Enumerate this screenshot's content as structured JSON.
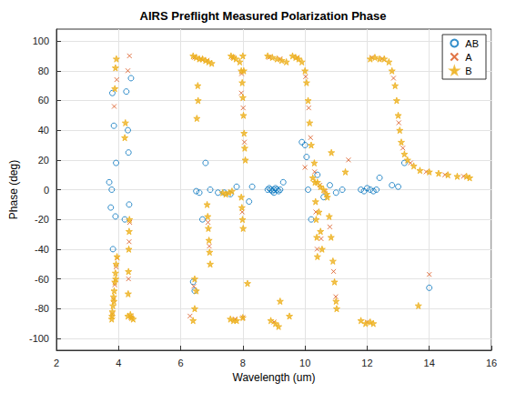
{
  "chart_data": {
    "type": "scatter",
    "title": "AIRS Preflight Measured Polarization Phase",
    "xlabel": "Wavelength (um)",
    "ylabel": "Phase (deg)",
    "xlim": [
      2,
      16
    ],
    "xticks": [
      2,
      4,
      6,
      8,
      10,
      12,
      14,
      16
    ],
    "ylim": [
      -108,
      108
    ],
    "yticks": [
      -100,
      -80,
      -60,
      -40,
      -20,
      0,
      20,
      40,
      60,
      80,
      100
    ],
    "grid": true,
    "legend": "northeast",
    "series": [
      {
        "name": "AB",
        "color": "#0072bd",
        "marker": "circle",
        "values": [
          [
            3.7,
            5
          ],
          [
            3.75,
            -12
          ],
          [
            3.8,
            65
          ],
          [
            3.82,
            -40
          ],
          [
            3.85,
            43
          ],
          [
            3.9,
            -18
          ],
          [
            3.92,
            18
          ],
          [
            3.78,
            0
          ],
          [
            4.3,
            40
          ],
          [
            4.32,
            25
          ],
          [
            4.34,
            -10
          ],
          [
            4.2,
            -20
          ],
          [
            4.4,
            75
          ],
          [
            4.25,
            66
          ],
          [
            6.4,
            -62
          ],
          [
            6.45,
            -68
          ],
          [
            6.5,
            -1
          ],
          [
            6.6,
            -2
          ],
          [
            6.7,
            -20
          ],
          [
            6.8,
            18
          ],
          [
            6.95,
            0
          ],
          [
            7.2,
            -2
          ],
          [
            7.4,
            -2
          ],
          [
            7.6,
            -3
          ],
          [
            7.8,
            2
          ],
          [
            8.2,
            -8
          ],
          [
            8.3,
            2
          ],
          [
            8.8,
            0
          ],
          [
            8.85,
            1
          ],
          [
            8.9,
            0
          ],
          [
            8.95,
            -1
          ],
          [
            9.0,
            0
          ],
          [
            9.05,
            1
          ],
          [
            9.1,
            0
          ],
          [
            9.15,
            -1
          ],
          [
            9.2,
            0
          ],
          [
            9.3,
            5
          ],
          [
            9.0,
            -2
          ],
          [
            9.9,
            32
          ],
          [
            10.0,
            30
          ],
          [
            10.05,
            22
          ],
          [
            10.1,
            0
          ],
          [
            10.2,
            -20
          ],
          [
            10.4,
            10
          ],
          [
            10.6,
            -5
          ],
          [
            10.8,
            3
          ],
          [
            11.0,
            -2
          ],
          [
            11.2,
            0
          ],
          [
            11.8,
            0
          ],
          [
            11.9,
            -1
          ],
          [
            12.0,
            1
          ],
          [
            12.1,
            0
          ],
          [
            12.2,
            -1
          ],
          [
            12.3,
            0
          ],
          [
            12.4,
            8
          ],
          [
            12.8,
            3
          ],
          [
            14.0,
            -66
          ],
          [
            13.0,
            2
          ],
          [
            13.2,
            18
          ]
        ]
      },
      {
        "name": "A",
        "color": "#d95319",
        "marker": "x",
        "values": [
          [
            3.8,
            -84
          ],
          [
            3.84,
            -74
          ],
          [
            3.88,
            -64
          ],
          [
            3.92,
            -52
          ],
          [
            3.96,
            -46
          ],
          [
            3.86,
            56
          ],
          [
            3.94,
            74
          ],
          [
            4.32,
            -60
          ],
          [
            4.34,
            -35
          ],
          [
            4.36,
            -22
          ],
          [
            4.4,
            -86
          ],
          [
            4.35,
            90
          ],
          [
            4.3,
            80
          ],
          [
            6.45,
            89
          ],
          [
            6.65,
            88
          ],
          [
            6.85,
            87
          ],
          [
            6.3,
            -85
          ],
          [
            6.42,
            -65
          ],
          [
            6.88,
            -22
          ],
          [
            6.92,
            -38
          ],
          [
            7.68,
            89
          ],
          [
            7.96,
            78
          ],
          [
            8.01,
            55
          ],
          [
            8.05,
            32
          ],
          [
            7.98,
            -15
          ],
          [
            7.75,
            -87
          ],
          [
            7.95,
            65
          ],
          [
            8.85,
            89
          ],
          [
            9.2,
            88
          ],
          [
            9.0,
            -89
          ],
          [
            9.75,
            89
          ],
          [
            10.02,
            76
          ],
          [
            10.12,
            55
          ],
          [
            10.18,
            35
          ],
          [
            10.31,
            12
          ],
          [
            10.35,
            -15
          ],
          [
            10.39,
            -40
          ],
          [
            10.48,
            3
          ],
          [
            10.65,
            -1
          ],
          [
            10.52,
            -33
          ],
          [
            10.8,
            -25
          ],
          [
            10.92,
            -55
          ],
          [
            10.99,
            -72
          ],
          [
            12.0,
            -89
          ],
          [
            12.15,
            89
          ],
          [
            12.5,
            88
          ],
          [
            12.85,
            75
          ],
          [
            13.02,
            45
          ],
          [
            13.15,
            28
          ],
          [
            13.4,
            18
          ],
          [
            13.9,
            12
          ],
          [
            14.5,
            10
          ],
          [
            15.1,
            9
          ],
          [
            14.0,
            -57
          ],
          [
            10.0,
            15
          ],
          [
            11.4,
            20
          ],
          [
            8.0,
            -86
          ]
        ]
      },
      {
        "name": "B",
        "color": "#edb120",
        "marker": "star",
        "values": [
          [
            3.78,
            -87
          ],
          [
            3.8,
            -82
          ],
          [
            3.82,
            -78
          ],
          [
            3.84,
            -72
          ],
          [
            3.86,
            -68
          ],
          [
            3.88,
            -62
          ],
          [
            3.9,
            -56
          ],
          [
            3.92,
            -50
          ],
          [
            3.95,
            -45
          ],
          [
            3.79,
            -85
          ],
          [
            3.85,
            -75
          ],
          [
            3.91,
            -60
          ],
          [
            3.88,
            68
          ],
          [
            3.9,
            82
          ],
          [
            3.93,
            88
          ],
          [
            4.3,
            -85
          ],
          [
            4.31,
            -70
          ],
          [
            4.32,
            -55
          ],
          [
            4.33,
            -40
          ],
          [
            4.34,
            -28
          ],
          [
            4.35,
            -20
          ],
          [
            4.38,
            -84
          ],
          [
            4.42,
            -86
          ],
          [
            4.47,
            -87
          ],
          [
            4.2,
            35
          ],
          [
            4.22,
            45
          ],
          [
            6.4,
            90
          ],
          [
            6.5,
            89
          ],
          [
            6.6,
            88
          ],
          [
            6.7,
            88
          ],
          [
            6.8,
            87
          ],
          [
            6.9,
            86
          ],
          [
            7.0,
            85
          ],
          [
            6.55,
            70
          ],
          [
            6.56,
            60
          ],
          [
            6.52,
            48
          ],
          [
            6.4,
            -88
          ],
          [
            6.45,
            -80
          ],
          [
            6.5,
            -68
          ],
          [
            6.85,
            -10
          ],
          [
            6.87,
            -18
          ],
          [
            6.89,
            -26
          ],
          [
            6.91,
            -34
          ],
          [
            6.93,
            -42
          ],
          [
            6.95,
            -50
          ],
          [
            7.35,
            -2
          ],
          [
            7.45,
            -3
          ],
          [
            7.55,
            -2
          ],
          [
            7.65,
            -1
          ],
          [
            7.62,
            90
          ],
          [
            7.7,
            89
          ],
          [
            7.78,
            88
          ],
          [
            7.9,
            86
          ],
          [
            7.95,
            80
          ],
          [
            7.98,
            72
          ],
          [
            8.0,
            62
          ],
          [
            8.02,
            50
          ],
          [
            8.04,
            38
          ],
          [
            8.06,
            28
          ],
          [
            8.08,
            20
          ],
          [
            8.0,
            90
          ],
          [
            8.03,
            80
          ],
          [
            7.95,
            -5
          ],
          [
            7.97,
            -12
          ],
          [
            7.99,
            -20
          ],
          [
            8.01,
            -26
          ],
          [
            7.6,
            -87
          ],
          [
            7.7,
            -88
          ],
          [
            7.8,
            -88
          ],
          [
            8.0,
            -86
          ],
          [
            8.8,
            90
          ],
          [
            8.95,
            89
          ],
          [
            9.1,
            88
          ],
          [
            9.25,
            87
          ],
          [
            9.4,
            86
          ],
          [
            8.9,
            -88
          ],
          [
            9.05,
            -90
          ],
          [
            9.15,
            -92
          ],
          [
            9.6,
            90
          ],
          [
            9.7,
            89
          ],
          [
            9.8,
            88
          ],
          [
            9.9,
            86
          ],
          [
            10.0,
            80
          ],
          [
            10.05,
            72
          ],
          [
            10.1,
            60
          ],
          [
            10.15,
            45
          ],
          [
            10.2,
            30
          ],
          [
            10.3,
            18
          ],
          [
            10.32,
            5
          ],
          [
            10.34,
            -8
          ],
          [
            10.36,
            -20
          ],
          [
            10.38,
            -32
          ],
          [
            10.4,
            -45
          ],
          [
            10.25,
            8
          ],
          [
            10.4,
            5
          ],
          [
            10.5,
            2
          ],
          [
            10.6,
            0
          ],
          [
            10.7,
            -3
          ],
          [
            10.45,
            -15
          ],
          [
            10.5,
            -28
          ],
          [
            10.55,
            -40
          ],
          [
            10.72,
            -5
          ],
          [
            10.78,
            -18
          ],
          [
            10.84,
            -32
          ],
          [
            10.9,
            -48
          ],
          [
            10.95,
            -62
          ],
          [
            11.0,
            -75
          ],
          [
            11.02,
            -80
          ],
          [
            11.8,
            -88
          ],
          [
            11.95,
            -90
          ],
          [
            12.1,
            -89
          ],
          [
            12.2,
            -90
          ],
          [
            12.1,
            88
          ],
          [
            12.25,
            89
          ],
          [
            12.4,
            88
          ],
          [
            12.55,
            88
          ],
          [
            12.7,
            86
          ],
          [
            12.8,
            80
          ],
          [
            12.9,
            70
          ],
          [
            12.95,
            60
          ],
          [
            13.0,
            50
          ],
          [
            13.05,
            40
          ],
          [
            13.1,
            32
          ],
          [
            13.2,
            24
          ],
          [
            13.3,
            20
          ],
          [
            13.5,
            16
          ],
          [
            13.7,
            13
          ],
          [
            14.0,
            12
          ],
          [
            14.3,
            11
          ],
          [
            14.6,
            10
          ],
          [
            14.9,
            9
          ],
          [
            15.2,
            9
          ],
          [
            15.3,
            8
          ],
          [
            10.85,
            25
          ],
          [
            11.3,
            12
          ],
          [
            13.65,
            -78
          ],
          [
            8.15,
            -63
          ],
          [
            9.2,
            -75
          ],
          [
            9.5,
            -85
          ],
          [
            6.45,
            -60
          ]
        ]
      }
    ]
  }
}
